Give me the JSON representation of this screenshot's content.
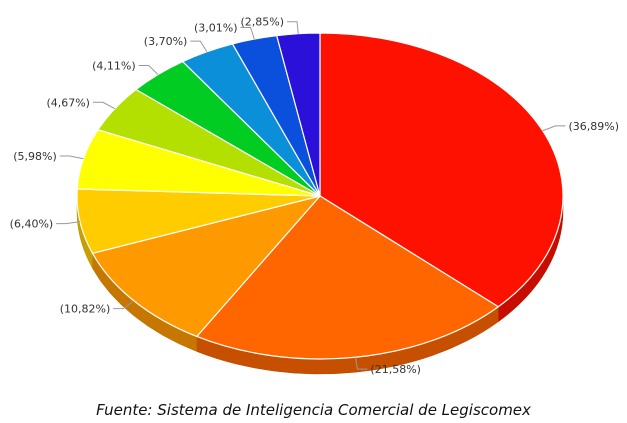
{
  "source": "Fuente: Sistema de Inteligencia Comercial de Legiscomex",
  "chart_data": {
    "type": "pie",
    "title": "",
    "style": "3d",
    "start": "top, clockwise",
    "slices": [
      {
        "value": 36.89,
        "label": "(36,89%)",
        "color": "#ff1100"
      },
      {
        "value": 21.58,
        "label": "(21,58%)",
        "color": "#ff6600"
      },
      {
        "value": 10.82,
        "label": "(10,82%)",
        "color": "#ff9900"
      },
      {
        "value": 6.4,
        "label": "(6,40%)",
        "color": "#ffcc00"
      },
      {
        "value": 5.98,
        "label": "(5,98%)",
        "color": "#ffff00"
      },
      {
        "value": 4.67,
        "label": "(4,67%)",
        "color": "#b3e000"
      },
      {
        "value": 4.11,
        "label": "(4,11%)",
        "color": "#00cc22"
      },
      {
        "value": 3.7,
        "label": "(3,70%)",
        "color": "#0a8fd8"
      },
      {
        "value": 3.01,
        "label": "(3,01%)",
        "color": "#0a50dd"
      },
      {
        "value": 2.85,
        "label": "(2,85%)",
        "color": "#2a10d8"
      }
    ]
  }
}
